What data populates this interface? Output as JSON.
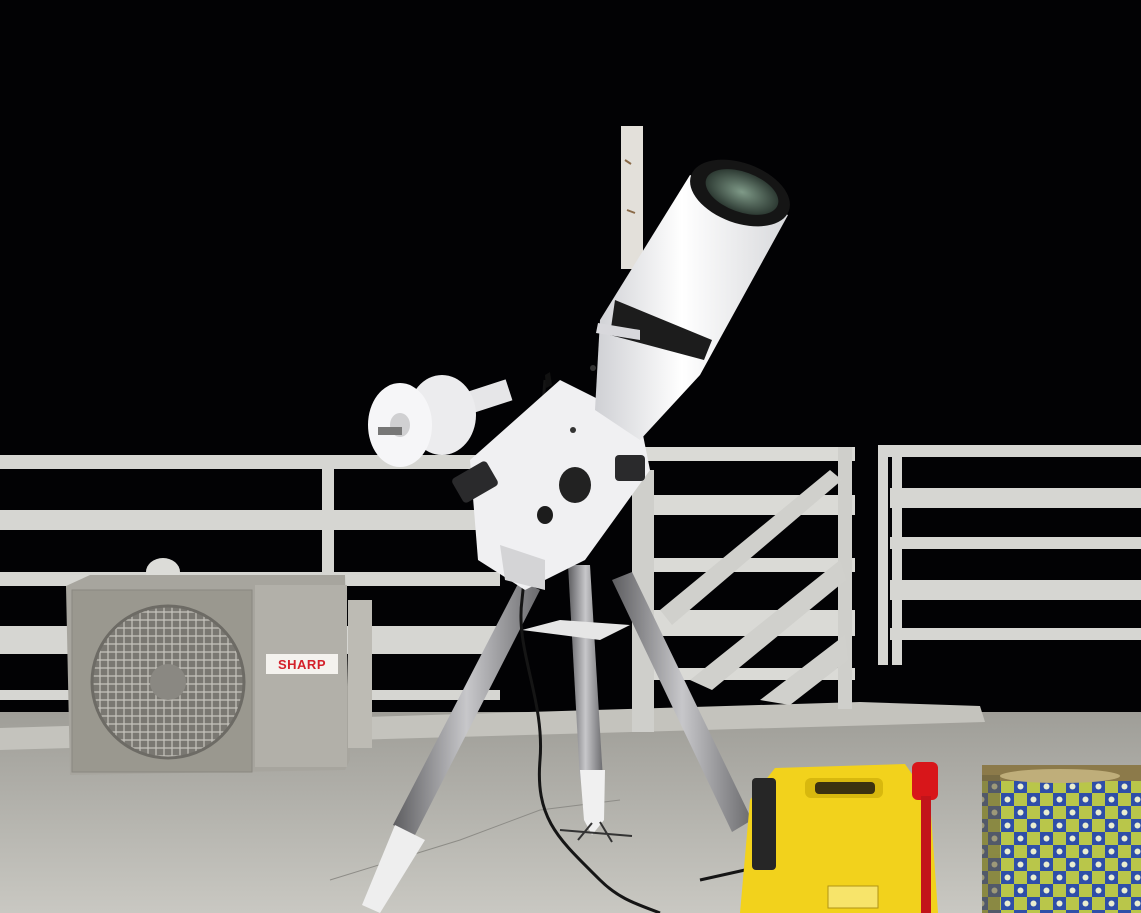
{
  "scene": {
    "description_free": true,
    "colors": {
      "sky": "#020204",
      "floor": "#b9b8b2",
      "railing": "#d6d6d2",
      "telescope_body": "#eeeef0",
      "tripod_leg": "#8e8e90",
      "ac_unit": "#a7a59e",
      "battery_yellow": "#f2d21c",
      "clamp_red": "#d8161a",
      "can_blue": "#2f4fa8",
      "can_green": "#b9c64a"
    },
    "ac_unit": {
      "brand_label": "SHARP"
    }
  }
}
